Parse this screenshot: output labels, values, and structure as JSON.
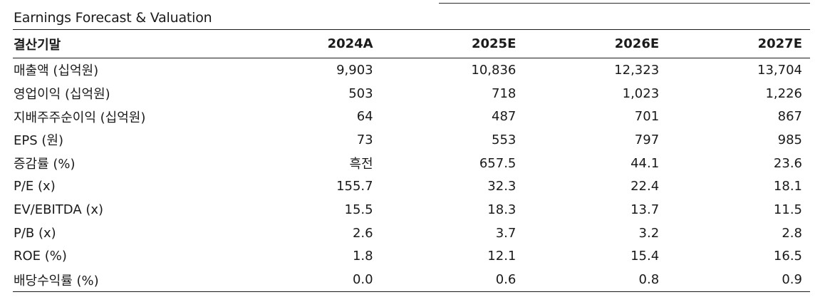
{
  "title": "Earnings Forecast & Valuation",
  "header": {
    "label": "결산기말",
    "years": [
      "2024A",
      "2025E",
      "2026E",
      "2027E"
    ]
  },
  "rows": [
    {
      "label": "매출액 (십억원)",
      "values": [
        "9,903",
        "10,836",
        "12,323",
        "13,704"
      ]
    },
    {
      "label": "영업이익 (십억원)",
      "values": [
        "503",
        "718",
        "1,023",
        "1,226"
      ]
    },
    {
      "label": "지배주주순이익 (십억원)",
      "values": [
        "64",
        "487",
        "701",
        "867"
      ]
    },
    {
      "label": "EPS (원)",
      "values": [
        "73",
        "553",
        "797",
        "985"
      ]
    },
    {
      "label": "증감률 (%)",
      "values": [
        "흑전",
        "657.5",
        "44.1",
        "23.6"
      ]
    },
    {
      "label": "P/E (x)",
      "values": [
        "155.7",
        "32.3",
        "22.4",
        "18.1"
      ]
    },
    {
      "label": "EV/EBITDA (x)",
      "values": [
        "15.5",
        "18.3",
        "13.7",
        "11.5"
      ]
    },
    {
      "label": "P/B (x)",
      "values": [
        "2.6",
        "3.7",
        "3.2",
        "2.8"
      ]
    },
    {
      "label": "ROE (%)",
      "values": [
        "1.8",
        "12.1",
        "15.4",
        "16.5"
      ]
    },
    {
      "label": "배당수익률 (%)",
      "values": [
        "0.0",
        "0.6",
        "0.8",
        "0.9"
      ]
    }
  ]
}
